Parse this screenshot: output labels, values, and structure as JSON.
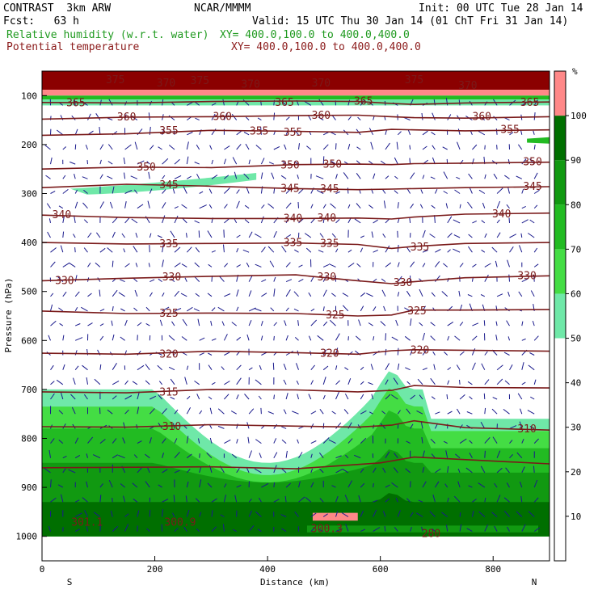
{
  "header": {
    "model": "CONTRAST  3km ARW",
    "org": "NCAR/MMMM",
    "init": "Init: 00 UTC Tue 28 Jan 14",
    "fcst": "Fcst:   63 h",
    "valid": "Valid: 15 UTC Thu 30 Jan 14 (01 ChT Fri 31 Jan 14)",
    "field1": "Relative humidity (w.r.t. water)",
    "field1_xy": "XY= 400.0,100.0 to 400.0,400.0",
    "field2": "Potential temperature",
    "field2_xy": "XY= 400.0,100.0 to 400.0,400.0"
  },
  "colors": {
    "field1": "#1f9a1f",
    "field2": "#8b1a1a",
    "contour": "#7a1a1a",
    "vector": "#1a1a8c"
  },
  "chart_data": {
    "type": "heatmap",
    "xlabel": "Distance (km)",
    "ylabel": "Pressure (hPa)",
    "xlim": [
      0,
      900
    ],
    "ylim": [
      1050,
      50
    ],
    "x_ticks": [
      "0",
      "200",
      "400",
      "600",
      "800"
    ],
    "y_ticks": [
      "100",
      "200",
      "300",
      "400",
      "500",
      "600",
      "700",
      "800",
      "900",
      "1000"
    ],
    "x_end_labels": {
      "left": "S",
      "right": "N"
    },
    "colorbar": {
      "unit": "%",
      "ticks": [
        "10",
        "20",
        "30",
        "40",
        "50",
        "60",
        "70",
        "80",
        "90",
        "100"
      ],
      "levels": [
        50,
        60,
        70,
        80,
        90,
        100
      ],
      "colors": [
        "#6fe8a8",
        "#44dd44",
        "#22bb22",
        "#119911",
        "#006f00",
        "#ff8888"
      ]
    },
    "contours": [
      {
        "theta": 310,
        "points": [
          [
            0,
            776
          ],
          [
            150,
            777
          ],
          [
            300,
            772
          ],
          [
            450,
            775
          ],
          [
            560,
            777
          ],
          [
            620,
            773
          ],
          [
            660,
            764
          ],
          [
            750,
            778
          ],
          [
            900,
            783
          ]
        ]
      },
      {
        "theta": 315,
        "points": [
          [
            0,
            705
          ],
          [
            150,
            707
          ],
          [
            300,
            700
          ],
          [
            450,
            701
          ],
          [
            560,
            705
          ],
          [
            620,
            702
          ],
          [
            660,
            692
          ],
          [
            750,
            696
          ],
          [
            900,
            697
          ]
        ]
      },
      {
        "theta": 320,
        "points": [
          [
            0,
            626
          ],
          [
            150,
            628
          ],
          [
            300,
            622
          ],
          [
            450,
            625
          ],
          [
            560,
            628
          ],
          [
            620,
            621
          ],
          [
            660,
            619
          ],
          [
            750,
            620
          ],
          [
            900,
            622
          ]
        ]
      },
      {
        "theta": 325,
        "points": [
          [
            0,
            540
          ],
          [
            150,
            545
          ],
          [
            300,
            544
          ],
          [
            450,
            545
          ],
          [
            560,
            550
          ],
          [
            620,
            548
          ],
          [
            660,
            538
          ],
          [
            750,
            538
          ],
          [
            900,
            537
          ]
        ]
      },
      {
        "theta": 330,
        "points": [
          [
            0,
            478
          ],
          [
            150,
            473
          ],
          [
            300,
            469
          ],
          [
            450,
            466
          ],
          [
            560,
            478
          ],
          [
            620,
            484
          ],
          [
            660,
            480
          ],
          [
            750,
            472
          ],
          [
            900,
            468
          ]
        ]
      },
      {
        "theta": 335,
        "points": [
          [
            0,
            400
          ],
          [
            150,
            403
          ],
          [
            300,
            402
          ],
          [
            450,
            401
          ],
          [
            560,
            404
          ],
          [
            620,
            412
          ],
          [
            660,
            408
          ],
          [
            750,
            402
          ],
          [
            900,
            400
          ]
        ]
      },
      {
        "theta": 340,
        "points": [
          [
            0,
            344
          ],
          [
            150,
            349
          ],
          [
            300,
            351
          ],
          [
            450,
            351
          ],
          [
            560,
            350
          ],
          [
            620,
            352
          ],
          [
            660,
            348
          ],
          [
            750,
            342
          ],
          [
            900,
            340
          ]
        ]
      },
      {
        "theta": 345,
        "points": [
          [
            0,
            288
          ],
          [
            150,
            281
          ],
          [
            300,
            285
          ],
          [
            450,
            290
          ],
          [
            560,
            292
          ],
          [
            620,
            291
          ],
          [
            660,
            290
          ],
          [
            750,
            288
          ],
          [
            900,
            286
          ]
        ]
      },
      {
        "theta": 350,
        "points": [
          [
            0,
            250
          ],
          [
            150,
            246
          ],
          [
            300,
            247
          ],
          [
            450,
            241
          ],
          [
            560,
            240
          ],
          [
            620,
            241
          ],
          [
            660,
            239
          ],
          [
            750,
            238
          ],
          [
            900,
            236
          ]
        ]
      },
      {
        "theta": 355,
        "points": [
          [
            0,
            181
          ],
          [
            150,
            178
          ],
          [
            300,
            171
          ],
          [
            450,
            173
          ],
          [
            560,
            175
          ],
          [
            620,
            169
          ],
          [
            660,
            170
          ],
          [
            750,
            172
          ],
          [
            900,
            170
          ]
        ]
      },
      {
        "theta": 360,
        "points": [
          [
            0,
            148
          ],
          [
            150,
            144
          ],
          [
            300,
            143
          ],
          [
            450,
            141
          ],
          [
            560,
            140
          ],
          [
            620,
            143
          ],
          [
            660,
            145
          ],
          [
            750,
            146
          ],
          [
            900,
            143
          ]
        ]
      },
      {
        "theta": 365,
        "points": [
          [
            0,
            114
          ],
          [
            150,
            115
          ],
          [
            300,
            112
          ],
          [
            450,
            111
          ],
          [
            560,
            112
          ],
          [
            620,
            116
          ],
          [
            660,
            118
          ],
          [
            750,
            115
          ],
          [
            900,
            113
          ]
        ]
      }
    ],
    "surface_contours": [
      {
        "label": "301.1",
        "x": 80,
        "p": 972
      },
      {
        "label": "300.9",
        "x": 245,
        "p": 972
      },
      {
        "label": "300.3",
        "x": 505,
        "p": 985
      },
      {
        "label": "280",
        "x": 690,
        "p": 995
      }
    ],
    "contour_labels": [
      {
        "label": "375",
        "x": 130,
        "p": 68
      },
      {
        "label": "370",
        "x": 220,
        "p": 75
      },
      {
        "label": "375",
        "x": 280,
        "p": 70
      },
      {
        "label": "370",
        "x": 370,
        "p": 77
      },
      {
        "label": "370",
        "x": 495,
        "p": 75
      },
      {
        "label": "375",
        "x": 660,
        "p": 68
      },
      {
        "label": "370",
        "x": 755,
        "p": 80
      },
      {
        "label": "365",
        "x": 60,
        "p": 115
      },
      {
        "label": "365",
        "x": 430,
        "p": 114
      },
      {
        "label": "365",
        "x": 570,
        "p": 112
      },
      {
        "label": "365",
        "x": 865,
        "p": 114
      },
      {
        "label": "360",
        "x": 150,
        "p": 144
      },
      {
        "label": "360",
        "x": 320,
        "p": 143
      },
      {
        "label": "360",
        "x": 495,
        "p": 141
      },
      {
        "label": "360",
        "x": 780,
        "p": 143
      },
      {
        "label": "355",
        "x": 225,
        "p": 172
      },
      {
        "label": "355",
        "x": 385,
        "p": 173
      },
      {
        "label": "355",
        "x": 445,
        "p": 175
      },
      {
        "label": "355",
        "x": 830,
        "p": 170
      },
      {
        "label": "350",
        "x": 185,
        "p": 246
      },
      {
        "label": "350",
        "x": 440,
        "p": 242
      },
      {
        "label": "350",
        "x": 515,
        "p": 241
      },
      {
        "label": "350",
        "x": 870,
        "p": 236
      },
      {
        "label": "345",
        "x": 225,
        "p": 283
      },
      {
        "label": "345",
        "x": 440,
        "p": 290
      },
      {
        "label": "345",
        "x": 510,
        "p": 291
      },
      {
        "label": "345",
        "x": 870,
        "p": 286
      },
      {
        "label": "340",
        "x": 35,
        "p": 344
      },
      {
        "label": "340",
        "x": 445,
        "p": 351
      },
      {
        "label": "340",
        "x": 505,
        "p": 350
      },
      {
        "label": "340",
        "x": 815,
        "p": 342
      },
      {
        "label": "335",
        "x": 225,
        "p": 403
      },
      {
        "label": "335",
        "x": 445,
        "p": 401
      },
      {
        "label": "335",
        "x": 510,
        "p": 402
      },
      {
        "label": "335",
        "x": 670,
        "p": 410
      },
      {
        "label": "330",
        "x": 40,
        "p": 478
      },
      {
        "label": "330",
        "x": 230,
        "p": 471
      },
      {
        "label": "330",
        "x": 505,
        "p": 471
      },
      {
        "label": "330",
        "x": 640,
        "p": 482
      },
      {
        "label": "330",
        "x": 860,
        "p": 468
      },
      {
        "label": "325",
        "x": 225,
        "p": 545
      },
      {
        "label": "325",
        "x": 520,
        "p": 548
      },
      {
        "label": "325",
        "x": 665,
        "p": 540
      },
      {
        "label": "320",
        "x": 225,
        "p": 628
      },
      {
        "label": "320",
        "x": 510,
        "p": 627
      },
      {
        "label": "320",
        "x": 670,
        "p": 620
      },
      {
        "label": "315",
        "x": 225,
        "p": 706
      },
      {
        "label": "310",
        "x": 230,
        "p": 776
      },
      {
        "label": "310",
        "x": 860,
        "p": 781
      }
    ]
  }
}
